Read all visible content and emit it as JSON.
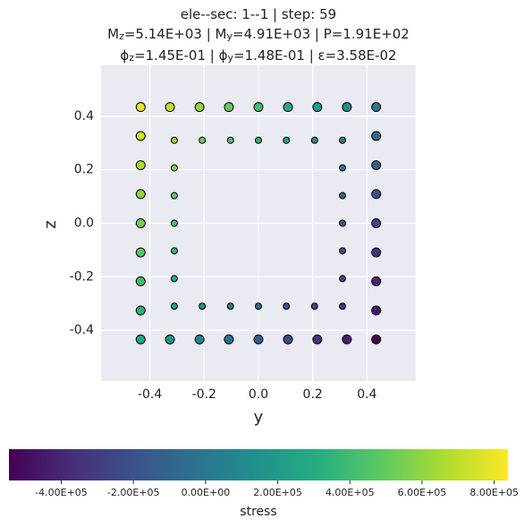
{
  "chart_data": {
    "type": "scatter",
    "title_lines": [
      [
        {
          "text": "ele--sec: 1--1 | step: 59"
        }
      ],
      [
        {
          "text": "M"
        },
        {
          "text": "z",
          "sub": true
        },
        {
          "text": "=5.14E+03 | M"
        },
        {
          "text": "y",
          "sub": true
        },
        {
          "text": "=4.91E+03 | P=1.91E+02"
        }
      ],
      [
        {
          "text": "ϕ"
        },
        {
          "text": "z",
          "sub": true
        },
        {
          "text": "=1.45E-01 | ϕ"
        },
        {
          "text": "y",
          "sub": true
        },
        {
          "text": "=1.48E-01 | ε=3.58E-02"
        }
      ]
    ],
    "xlabel": "y",
    "ylabel": "z",
    "xlim": [
      -0.58,
      0.58
    ],
    "ylim": [
      -0.59,
      0.59
    ],
    "xticks": [
      -0.4,
      -0.2,
      {
        "value": 0,
        "label": "0.0"
      },
      0.2,
      0.4
    ],
    "yticks": [
      -0.4,
      -0.2,
      {
        "value": 0,
        "label": "0.0"
      },
      0.2,
      0.4
    ],
    "grid": true,
    "series": [
      {
        "size": 5,
        "x": [
          -0.434,
          -0.326,
          -0.217,
          -0.109,
          0,
          0.109,
          0.217,
          0.326,
          0.434,
          -0.434,
          -0.326,
          -0.217,
          -0.109,
          0,
          0.109,
          0.217,
          0.326,
          0.434,
          -0.434,
          -0.434,
          -0.434,
          -0.434,
          -0.434,
          -0.434,
          -0.434,
          0.434,
          0.434,
          0.434,
          0.434,
          0.434,
          0.434,
          0.434
        ],
        "y": [
          0.434,
          0.434,
          0.434,
          0.434,
          0.434,
          0.434,
          0.434,
          0.434,
          0.434,
          -0.434,
          -0.434,
          -0.434,
          -0.434,
          -0.434,
          -0.434,
          -0.434,
          -0.434,
          -0.434,
          0.326,
          0.217,
          0.109,
          0,
          -0.109,
          -0.217,
          -0.326,
          0.326,
          0.217,
          0.109,
          0,
          -0.109,
          -0.217,
          -0.326
        ],
        "values": [
          805000,
          705000,
          605000,
          505000,
          405000,
          305000,
          205000,
          105000,
          5000,
          265000,
          165000,
          65000,
          -35000,
          -135000,
          -235000,
          -335000,
          -435000,
          -535000,
          738000,
          670000,
          603000,
          535000,
          467000,
          400000,
          332000,
          -62000,
          -130000,
          -197000,
          -265000,
          -333000,
          -400000,
          -468000
        ]
      },
      {
        "size": 3.5,
        "x": [
          -0.31,
          -0.207,
          -0.103,
          0,
          0.103,
          0.207,
          0.31,
          -0.31,
          -0.207,
          -0.103,
          0,
          0.103,
          0.207,
          0.31,
          -0.31,
          -0.31,
          -0.31,
          -0.31,
          -0.31,
          0.31,
          0.31,
          0.31,
          0.31,
          0.31
        ],
        "y": [
          0.31,
          0.31,
          0.31,
          0.31,
          0.31,
          0.31,
          0.31,
          -0.31,
          -0.31,
          -0.31,
          -0.31,
          -0.31,
          -0.31,
          -0.31,
          0.207,
          0.103,
          0,
          -0.103,
          -0.207,
          0.207,
          0.103,
          0,
          -0.103,
          -0.207
        ],
        "values": [
          614000,
          519000,
          423000,
          328000,
          233000,
          137000,
          42000,
          228000,
          133000,
          37000,
          -58000,
          -153000,
          -249000,
          -344000,
          550000,
          485000,
          421000,
          357000,
          292000,
          -22000,
          -87000,
          -151000,
          -215000,
          -280000
        ]
      }
    ],
    "colorbar": {
      "label": "stress",
      "clim": [
        -545000,
        838000
      ],
      "ticks": [
        {
          "value": -400000,
          "label": "-4.00E+05"
        },
        {
          "value": -200000,
          "label": "-2.00E+05"
        },
        {
          "value": 0,
          "label": "0.00E+00"
        },
        {
          "value": 200000,
          "label": "2.00E+05"
        },
        {
          "value": 400000,
          "label": "4.00E+05"
        },
        {
          "value": 600000,
          "label": "6.00E+05"
        },
        {
          "value": 800000,
          "label": "8.00E+05"
        }
      ],
      "colormap": [
        "#440154",
        "#472d7b",
        "#3b528b",
        "#2c728e",
        "#21918c",
        "#28ae80",
        "#5ec962",
        "#addc30",
        "#fde725"
      ]
    }
  }
}
